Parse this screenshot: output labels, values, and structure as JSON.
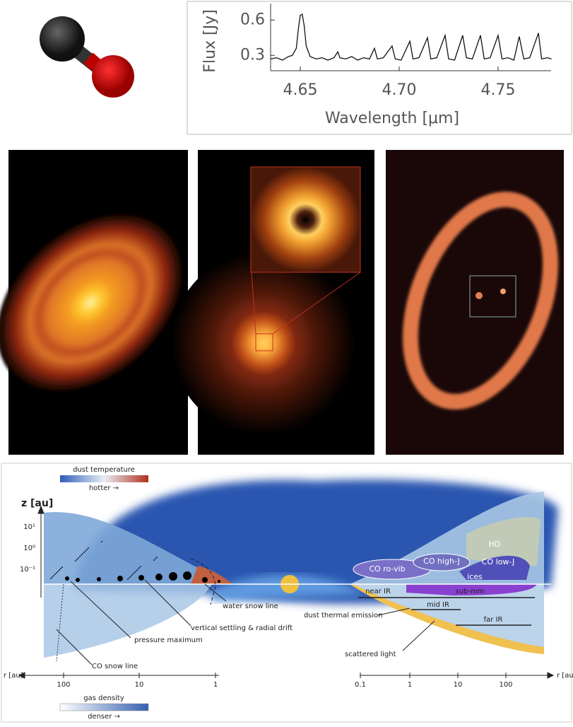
{
  "chart_data": {
    "type": "line",
    "ylabel": "Flux [Jy]",
    "xlabel": "Wavelength [μm]",
    "x": [
      4.635,
      4.638,
      4.641,
      4.644,
      4.646,
      4.648,
      4.649,
      4.65,
      4.651,
      4.652,
      4.653,
      4.655,
      4.658,
      4.661,
      4.664,
      4.667,
      4.669,
      4.67,
      4.673,
      4.676,
      4.679,
      4.682,
      4.685,
      4.6875,
      4.689,
      4.692,
      4.6964,
      4.698,
      4.701,
      4.7054,
      4.707,
      4.71,
      4.7143,
      4.716,
      4.719,
      4.7232,
      4.725,
      4.728,
      4.7321,
      4.734,
      4.737,
      4.7411,
      4.743,
      4.746,
      4.75,
      4.752,
      4.755,
      4.758,
      4.7607,
      4.763,
      4.766,
      4.7704,
      4.772,
      4.775,
      4.777
    ],
    "values": [
      0.27,
      0.28,
      0.26,
      0.29,
      0.3,
      0.36,
      0.52,
      0.64,
      0.65,
      0.55,
      0.38,
      0.29,
      0.27,
      0.28,
      0.26,
      0.28,
      0.33,
      0.28,
      0.27,
      0.29,
      0.26,
      0.28,
      0.27,
      0.36,
      0.27,
      0.28,
      0.38,
      0.27,
      0.26,
      0.42,
      0.27,
      0.28,
      0.45,
      0.27,
      0.28,
      0.47,
      0.27,
      0.26,
      0.47,
      0.28,
      0.27,
      0.47,
      0.27,
      0.28,
      0.47,
      0.27,
      0.28,
      0.26,
      0.46,
      0.27,
      0.28,
      0.49,
      0.27,
      0.28,
      0.27
    ],
    "color": "#111111",
    "xlim": [
      4.635,
      4.7768
    ],
    "ylim": [
      0.17,
      0.74
    ],
    "xticks": [
      4.65,
      {
        "value": 4.7,
        "label": "4.70"
      },
      4.75
    ],
    "yticks": [
      0.3,
      0.6
    ]
  },
  "diagram": {
    "dust_colorbar": {
      "title": "dust temperature",
      "direction": "hotter →"
    },
    "gas_colorbar": {
      "title": "gas density",
      "direction": "denser →"
    },
    "z_axis": {
      "label": "z [au]",
      "ticks": [
        "10¹",
        "10⁰",
        "10⁻¹"
      ]
    },
    "left_r_axis": {
      "label": "r [au]",
      "ticks": [
        "100",
        "10",
        "1"
      ]
    },
    "right_r_axis": {
      "label": "r [au]",
      "ticks": [
        "0.1",
        "1",
        "10",
        "100"
      ]
    },
    "left_labels": [
      "water snow line",
      "vertical settling & radial drift",
      "pressure maximum",
      "CO snow line"
    ],
    "right_regions": [
      "HD",
      "CO ro-vib",
      "CO high-J",
      "CO low-J",
      "ices"
    ],
    "wavebands": [
      "near IR",
      "sub-mm",
      "mid IR",
      "far IR"
    ],
    "right_labels": [
      "dust thermal emission",
      "scattered light"
    ]
  }
}
